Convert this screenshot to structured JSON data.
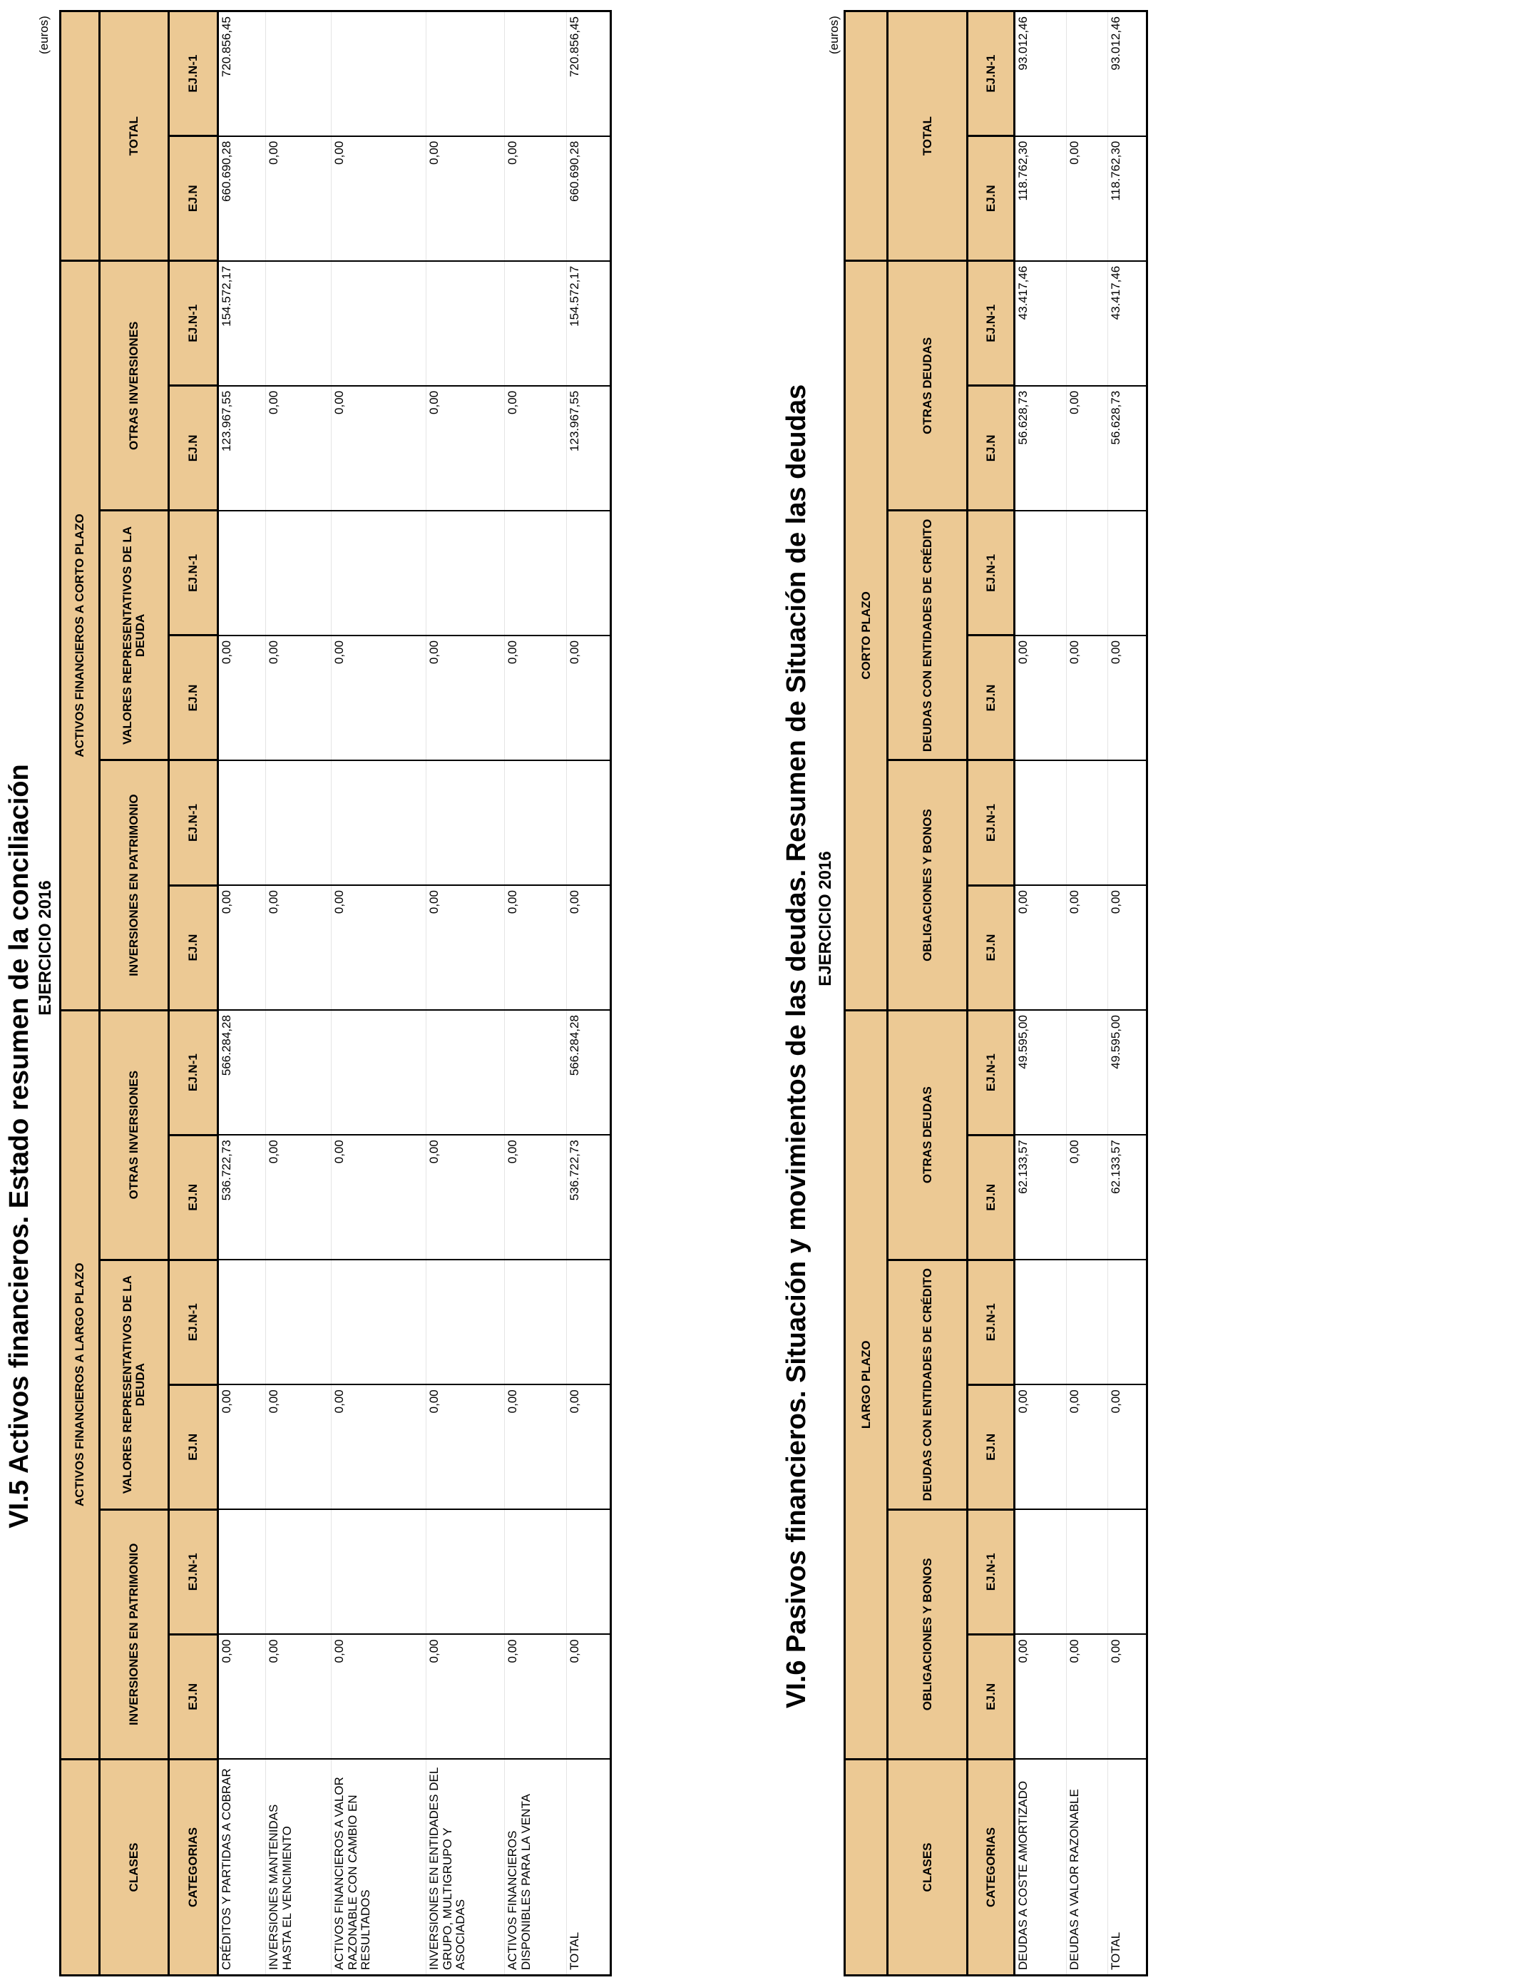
{
  "header_color": "#ECC994",
  "table1": {
    "title": "VI.5 Activos financieros. Estado resumen de la conciliación",
    "subtitle": "EJERCICIO 2016",
    "units": "(euros)",
    "top_groups": [
      "",
      "ACTIVOS FINANCIEROS A LARGO PLAZO",
      "ACTIVOS FINANCIEROS A CORTO PLAZO",
      ""
    ],
    "clases_label": "CLASES",
    "groups": [
      "INVERSIONES EN PATRIMONIO",
      "VALORES REPRESENTATIVOS DE LA DEUDA",
      "OTRAS INVERSIONES",
      "INVERSIONES EN PATRIMONIO",
      "VALORES REPRESENTATIVOS DE LA DEUDA",
      "OTRAS INVERSIONES",
      "TOTAL"
    ],
    "categorias_label": "CATEGORIAS",
    "col_labels": [
      "EJ.N",
      "EJ.N-1"
    ],
    "rows": [
      {
        "label": "CRÉDITOS Y PARTIDAS A COBRAR",
        "values": [
          "0,00",
          "",
          "0,00",
          "",
          "536.722,73",
          "566.284,28",
          "0,00",
          "",
          "0,00",
          "",
          "123.967,55",
          "154.572,17",
          "660.690,28",
          "720.856,45"
        ]
      },
      {
        "label": "INVERSIONES MANTENIDAS HASTA EL VENCIMIENTO",
        "values": [
          "0,00",
          "",
          "0,00",
          "",
          "0,00",
          "",
          "0,00",
          "",
          "0,00",
          "",
          "0,00",
          "",
          "0,00",
          ""
        ]
      },
      {
        "label": "ACTIVOS FINANCIEROS A VALOR RAZONABLE CON CAMBIO EN RESULTADOS",
        "values": [
          "0,00",
          "",
          "0,00",
          "",
          "0,00",
          "",
          "0,00",
          "",
          "0,00",
          "",
          "0,00",
          "",
          "0,00",
          ""
        ]
      },
      {
        "label": "INVERSIONES EN ENTIDADES DEL GRUPO, MULTIGRUPO Y ASOCIADAS",
        "values": [
          "0,00",
          "",
          "0,00",
          "",
          "0,00",
          "",
          "0,00",
          "",
          "0,00",
          "",
          "0,00",
          "",
          "0,00",
          ""
        ]
      },
      {
        "label": "ACTIVOS FINANCIEROS DISPONIBLES PARA LA VENTA",
        "values": [
          "0,00",
          "",
          "0,00",
          "",
          "0,00",
          "",
          "0,00",
          "",
          "0,00",
          "",
          "0,00",
          "",
          "0,00",
          ""
        ]
      },
      {
        "label": "TOTAL",
        "values": [
          "0,00",
          "",
          "0,00",
          "",
          "536.722,73",
          "566.284,28",
          "0,00",
          "",
          "0,00",
          "",
          "123.967,55",
          "154.572,17",
          "660.690,28",
          "720.856,45"
        ]
      }
    ]
  },
  "table2": {
    "title": "VI.6 Pasivos financieros. Situación y movimientos de las deudas. Resumen de Situación de las deudas",
    "subtitle": "EJERCICIO 2016",
    "units": "(euros)",
    "top_groups": [
      "",
      "LARGO PLAZO",
      "CORTO PLAZO",
      ""
    ],
    "clases_label": "CLASES",
    "groups": [
      "OBLIGACIONES Y BONOS",
      "DEUDAS CON ENTIDADES DE CRÉDITO",
      "OTRAS DEUDAS",
      "OBLIGACIONES Y BONOS",
      "DEUDAS CON ENTIDADES DE CRÉDITO",
      "OTRAS DEUDAS",
      "TOTAL"
    ],
    "categorias_label": "CATEGORIAS",
    "col_labels": [
      "EJ.N",
      "EJ.N-1"
    ],
    "rows": [
      {
        "label": "DEUDAS A COSTE AMORTIZADO",
        "values": [
          "0,00",
          "",
          "0,00",
          "",
          "62.133,57",
          "49.595,00",
          "0,00",
          "",
          "0,00",
          "",
          "56.628,73",
          "43.417,46",
          "118.762,30",
          "93.012,46"
        ]
      },
      {
        "label": "DEUDAS A VALOR RAZONABLE",
        "values": [
          "0,00",
          "",
          "0,00",
          "",
          "0,00",
          "",
          "0,00",
          "",
          "0,00",
          "",
          "0,00",
          "",
          "0,00",
          ""
        ]
      },
      {
        "label": "TOTAL",
        "values": [
          "0,00",
          "",
          "0,00",
          "",
          "62.133,57",
          "49.595,00",
          "0,00",
          "",
          "0,00",
          "",
          "56.628,73",
          "43.417,46",
          "118.762,30",
          "93.012,46"
        ]
      }
    ]
  }
}
